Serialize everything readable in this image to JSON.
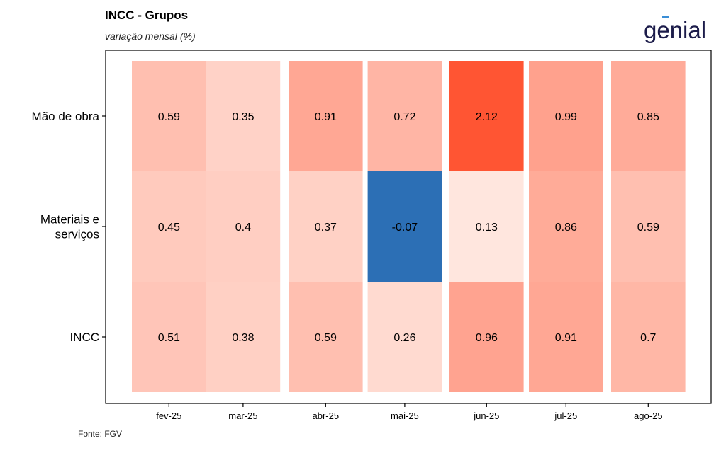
{
  "header": {
    "title": "INCC - Grupos",
    "subtitle": "variação mensal (%)",
    "logo_text": "genial"
  },
  "footer": {
    "source": "Fonte: FGV"
  },
  "colors": {
    "negative": "#2c6fb5",
    "high": "#ff5533",
    "low": "#fff5f0",
    "text": "#000000",
    "logo": "#1c1c4a",
    "logo_accent": "#3a8ed6"
  },
  "chart_data": {
    "type": "heatmap",
    "x_categories": [
      "fev-25",
      "mar-25",
      "abr-25",
      "mai-25",
      "jun-25",
      "jul-25",
      "ago-25"
    ],
    "y_categories": [
      "Mão de obra",
      "Materiais e serviços",
      "INCC"
    ],
    "y_tick_lines": [
      [
        "Mão de obra"
      ],
      [
        "Materiais e",
        "serviços"
      ],
      [
        "INCC"
      ]
    ],
    "values": [
      [
        0.59,
        0.35,
        0.91,
        0.72,
        2.12,
        0.99,
        0.85
      ],
      [
        0.45,
        0.4,
        0.37,
        -0.07,
        0.13,
        0.86,
        0.59
      ],
      [
        0.51,
        0.38,
        0.59,
        0.26,
        0.96,
        0.91,
        0.7
      ]
    ],
    "value_labels": [
      [
        "0.59",
        "0.35",
        "0.91",
        "0.72",
        "2.12",
        "0.99",
        "0.85"
      ],
      [
        "0.45",
        "0.4",
        "0.37",
        "-0.07",
        "0.13",
        "0.86",
        "0.59"
      ],
      [
        "0.51",
        "0.38",
        "0.59",
        "0.26",
        "0.96",
        "0.91",
        "0.7"
      ]
    ],
    "color_range": [
      0,
      2.12
    ],
    "legend": "none",
    "grid": false
  }
}
